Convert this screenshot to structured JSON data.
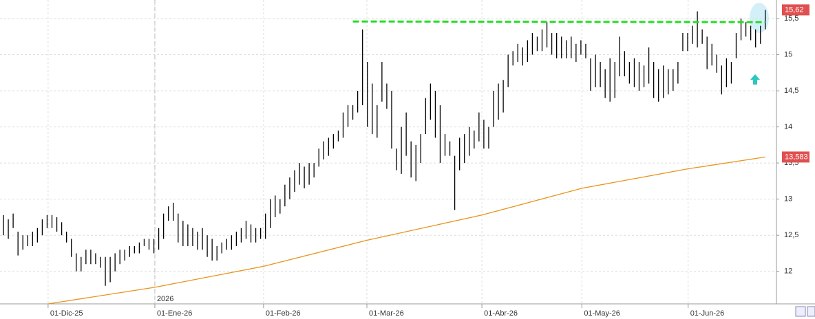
{
  "chart_data": {
    "type": "ohlc",
    "high": [
      12.78,
      12.72,
      12.8,
      12.55,
      12.5,
      12.5,
      12.55,
      12.6,
      12.72,
      12.78,
      12.78,
      12.75,
      12.68,
      12.55,
      12.45,
      12.25,
      12.2,
      12.3,
      12.3,
      12.25,
      12.2,
      12.2,
      12.2,
      12.25,
      12.3,
      12.3,
      12.35,
      12.35,
      12.4,
      12.45,
      12.45,
      12.45,
      12.6,
      12.8,
      12.9,
      12.95,
      12.8,
      12.7,
      12.65,
      12.6,
      12.55,
      12.6,
      12.5,
      12.45,
      12.35,
      12.4,
      12.45,
      12.5,
      12.55,
      12.6,
      12.7,
      12.65,
      12.6,
      12.6,
      12.8,
      13.0,
      13.05,
      13.0,
      13.2,
      13.3,
      13.4,
      13.5,
      13.45,
      13.5,
      13.5,
      13.7,
      13.8,
      13.85,
      13.9,
      13.95,
      14.2,
      14.3,
      14.3,
      14.5,
      15.35,
      14.9,
      14.6,
      14.3,
      14.9,
      14.6,
      14.5,
      13.7,
      14.0,
      14.2,
      13.8,
      13.75,
      13.9,
      14.4,
      14.6,
      14.5,
      14.3,
      13.9,
      13.8,
      13.6,
      13.85,
      13.9,
      14.0,
      13.95,
      14.2,
      14.1,
      14.0,
      14.5,
      14.6,
      14.65,
      15.0,
      15.05,
      15.15,
      15.1,
      15.2,
      15.3,
      15.25,
      15.35,
      15.45,
      15.3,
      15.3,
      15.25,
      15.2,
      15.25,
      15.15,
      15.2,
      15.15,
      14.95,
      15.0,
      14.9,
      14.8,
      14.95,
      14.9,
      15.25,
      15.05,
      14.9,
      14.95,
      14.9,
      14.85,
      15.1,
      14.9,
      14.8,
      14.85,
      14.8,
      14.8,
      14.9,
      15.3,
      15.3,
      15.4,
      15.6,
      15.35,
      15.25,
      15.15,
      15.0,
      14.85,
      14.95,
      14.9,
      15.3,
      15.5,
      15.45,
      15.4,
      15.35,
      15.4,
      15.62
    ],
    "low": [
      12.5,
      12.45,
      12.6,
      12.22,
      12.3,
      12.35,
      12.35,
      12.4,
      12.5,
      12.6,
      12.6,
      12.55,
      12.5,
      12.4,
      12.2,
      12.0,
      12.0,
      12.1,
      12.1,
      12.1,
      12.05,
      11.8,
      11.85,
      12.0,
      12.1,
      12.15,
      12.2,
      12.25,
      12.25,
      12.35,
      12.3,
      12.25,
      12.3,
      12.45,
      12.7,
      12.7,
      12.4,
      12.35,
      12.35,
      12.35,
      12.3,
      12.3,
      12.2,
      12.15,
      12.15,
      12.25,
      12.3,
      12.3,
      12.35,
      12.4,
      12.45,
      12.4,
      12.4,
      12.45,
      12.45,
      12.6,
      12.75,
      12.8,
      12.9,
      13.0,
      13.1,
      13.2,
      13.15,
      13.2,
      13.3,
      13.45,
      13.55,
      13.6,
      13.7,
      13.8,
      13.85,
      14.0,
      14.1,
      14.2,
      14.3,
      14.0,
      13.9,
      13.85,
      14.35,
      14.25,
      13.7,
      13.4,
      13.35,
      13.6,
      13.3,
      13.25,
      13.5,
      13.9,
      14.1,
      13.85,
      13.5,
      13.6,
      13.6,
      12.85,
      13.4,
      13.5,
      13.6,
      13.7,
      13.8,
      13.7,
      13.7,
      14.0,
      14.1,
      14.2,
      14.55,
      14.85,
      14.9,
      14.85,
      14.9,
      15.0,
      15.05,
      15.05,
      15.1,
      15.0,
      14.95,
      14.95,
      14.95,
      14.95,
      14.9,
      15.0,
      14.95,
      14.5,
      14.55,
      14.55,
      14.4,
      14.35,
      14.4,
      14.7,
      14.7,
      14.6,
      14.55,
      14.5,
      14.55,
      14.6,
      14.4,
      14.35,
      14.4,
      14.45,
      14.5,
      14.6,
      15.05,
      15.05,
      15.15,
      15.1,
      15.15,
      14.8,
      14.85,
      14.75,
      14.45,
      14.55,
      14.6,
      14.95,
      15.2,
      15.25,
      15.2,
      15.1,
      15.15,
      15.35
    ],
    "color": "#000000",
    "series": [
      {
        "name": "SMA",
        "color": "#e8941a",
        "x": [
          9.2,
          31.2,
          53.6,
          74.9,
          98.6,
          119.2,
          141.1,
          157
        ],
        "values": [
          11.55,
          11.78,
          12.07,
          12.43,
          12.78,
          13.15,
          13.42,
          13.583
        ]
      },
      {
        "name": "Resistance",
        "color": "#22dd22",
        "x": [
          72,
          157
        ],
        "values": [
          15.46,
          15.45
        ]
      }
    ],
    "xlim": [
      -0.71,
      159.3
    ],
    "xticks": [
      {
        "value": 9.2,
        "label": "01-Dic-25"
      },
      {
        "value": 31.2,
        "label": "01-Ene-26"
      },
      {
        "value": 53.6,
        "label": "01-Feb-26"
      },
      {
        "value": 74.9,
        "label": "01-Mar-26"
      },
      {
        "value": 98.6,
        "label": "01-Abr-26"
      },
      {
        "value": 119.2,
        "label": "01-May-26"
      },
      {
        "value": 141.1,
        "label": "01-Jun-26"
      }
    ],
    "year_marker": {
      "value": 31.2,
      "label": "2026"
    },
    "ylim": [
      11.55,
      15.757
    ],
    "yticks": [
      {
        "value": 15.5,
        "label": "15,5"
      },
      15,
      {
        "value": 14.5,
        "label": "14,5"
      },
      14,
      {
        "value": 13.5,
        "label": "13,5"
      },
      13,
      {
        "value": 12.5,
        "label": "12,5"
      },
      12
    ],
    "price_labels": [
      {
        "value": 15.62,
        "label": "15,62"
      },
      {
        "value": 13.583,
        "label": "13,583"
      }
    ],
    "grid": true
  }
}
